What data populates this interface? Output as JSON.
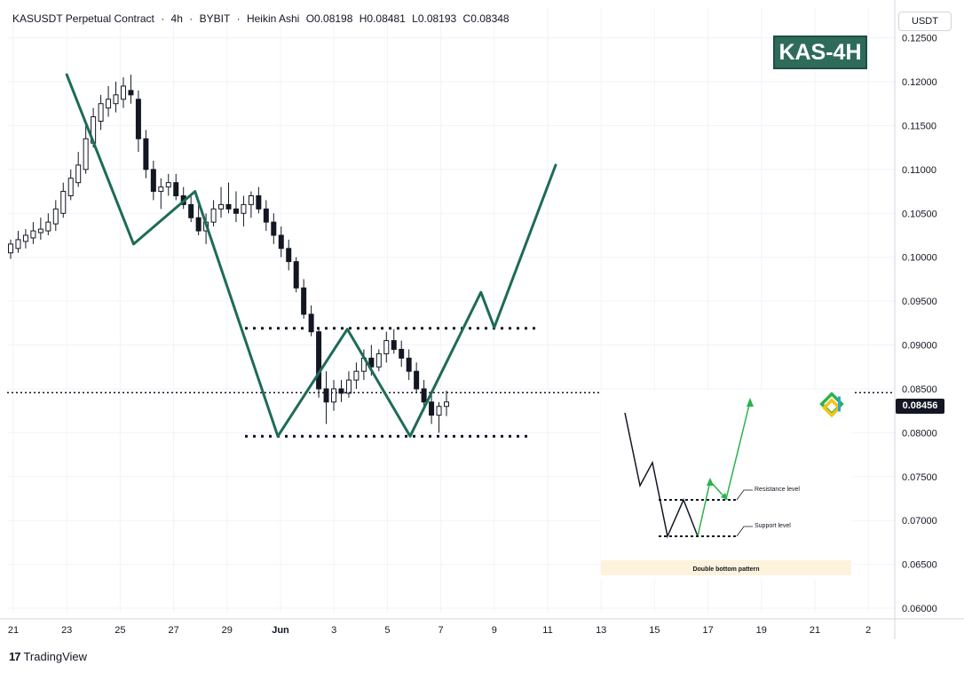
{
  "header": {
    "symbol": "KASUSDT Perpetual Contract",
    "interval": "4h",
    "exchange": "BYBIT",
    "chart_style": "Heikin Ashi",
    "open": "O0.08198",
    "high": "H0.08481",
    "low": "L0.08193",
    "close": "C0.08348"
  },
  "currency_label": "USDT",
  "badge": "KAS-4H",
  "current_price_label": "0.08456",
  "branding": "TradingView",
  "colors": {
    "candle": "#131722",
    "projection_line": "#1e6b57",
    "badge_bg": "#2e6b5a",
    "inset_arrow": "#2bb24c",
    "grid": "#f0f3fa"
  },
  "chart_data": {
    "type": "line",
    "title": "",
    "y_ticks": [
      "0.12500",
      "0.12000",
      "0.11500",
      "0.11000",
      "0.10500",
      "0.10000",
      "0.09500",
      "0.09000",
      "0.08500",
      "0.08000",
      "0.07500",
      "0.07000",
      "0.06500",
      "0.06000"
    ],
    "x_ticks": [
      "21",
      "23",
      "25",
      "27",
      "29",
      "Jun",
      "3",
      "5",
      "7",
      "9",
      "11",
      "13",
      "15",
      "17",
      "19",
      "21",
      "2"
    ],
    "ylim": [
      0.0595,
      0.1285
    ],
    "grid": true,
    "current_price": 0.08456,
    "support_level": 0.0796,
    "resistance_level": 0.0919,
    "projection_path": [
      {
        "x": 23.0,
        "y": 0.1208
      },
      {
        "x": 25.5,
        "y": 0.1015
      },
      {
        "x": 27.8,
        "y": 0.1075
      },
      {
        "x": 30.9,
        "y": 0.0796
      },
      {
        "x": 33.5,
        "y": 0.0918
      },
      {
        "x": 35.85,
        "y": 0.0796
      },
      {
        "x": 38.5,
        "y": 0.096
      },
      {
        "x": 39.0,
        "y": 0.092
      },
      {
        "x": 41.3,
        "y": 0.1105
      }
    ],
    "candles_approx": [
      [
        0.1005,
        0.102,
        0.0998,
        0.1015
      ],
      [
        0.101,
        0.103,
        0.1005,
        0.102
      ],
      [
        0.1018,
        0.1032,
        0.101,
        0.1025
      ],
      [
        0.1022,
        0.104,
        0.1015,
        0.103
      ],
      [
        0.1028,
        0.1045,
        0.102,
        0.1032
      ],
      [
        0.103,
        0.105,
        0.1025,
        0.104
      ],
      [
        0.1038,
        0.1065,
        0.103,
        0.1055
      ],
      [
        0.105,
        0.1085,
        0.1045,
        0.1075
      ],
      [
        0.107,
        0.11,
        0.1065,
        0.109
      ],
      [
        0.1085,
        0.112,
        0.108,
        0.1105
      ],
      [
        0.11,
        0.115,
        0.1095,
        0.1135
      ],
      [
        0.113,
        0.117,
        0.1125,
        0.116
      ],
      [
        0.1155,
        0.1185,
        0.1145,
        0.1175
      ],
      [
        0.117,
        0.1195,
        0.116,
        0.118
      ],
      [
        0.1175,
        0.12,
        0.1165,
        0.1185
      ],
      [
        0.118,
        0.1205,
        0.117,
        0.1195
      ],
      [
        0.119,
        0.1208,
        0.1175,
        0.1185
      ],
      [
        0.118,
        0.119,
        0.112,
        0.1135
      ],
      [
        0.1135,
        0.1145,
        0.109,
        0.11
      ],
      [
        0.11,
        0.111,
        0.1065,
        0.1075
      ],
      [
        0.1075,
        0.109,
        0.1055,
        0.108
      ],
      [
        0.108,
        0.1095,
        0.107,
        0.1085
      ],
      [
        0.1085,
        0.1095,
        0.1065,
        0.107
      ],
      [
        0.107,
        0.108,
        0.1055,
        0.106
      ],
      [
        0.106,
        0.107,
        0.104,
        0.1045
      ],
      [
        0.1045,
        0.106,
        0.1025,
        0.103
      ],
      [
        0.103,
        0.105,
        0.1015,
        0.104
      ],
      [
        0.104,
        0.1065,
        0.1035,
        0.1055
      ],
      [
        0.1055,
        0.108,
        0.1045,
        0.106
      ],
      [
        0.106,
        0.1085,
        0.105,
        0.1055
      ],
      [
        0.1055,
        0.1075,
        0.104,
        0.105
      ],
      [
        0.105,
        0.107,
        0.1035,
        0.106
      ],
      [
        0.106,
        0.1075,
        0.1045,
        0.107
      ],
      [
        0.107,
        0.108,
        0.105,
        0.1055
      ],
      [
        0.1055,
        0.1065,
        0.103,
        0.104
      ],
      [
        0.104,
        0.105,
        0.1015,
        0.1025
      ],
      [
        0.1025,
        0.1035,
        0.1,
        0.101
      ],
      [
        0.101,
        0.102,
        0.0985,
        0.0995
      ],
      [
        0.0995,
        0.1,
        0.096,
        0.0965
      ],
      [
        0.0965,
        0.0975,
        0.093,
        0.0935
      ],
      [
        0.0935,
        0.0945,
        0.091,
        0.0915
      ],
      [
        0.0915,
        0.092,
        0.084,
        0.085
      ],
      [
        0.085,
        0.087,
        0.081,
        0.0835
      ],
      [
        0.0835,
        0.086,
        0.0825,
        0.085
      ],
      [
        0.085,
        0.086,
        0.0835,
        0.0845
      ],
      [
        0.0845,
        0.087,
        0.084,
        0.086
      ],
      [
        0.086,
        0.088,
        0.085,
        0.087
      ],
      [
        0.087,
        0.0895,
        0.086,
        0.0885
      ],
      [
        0.0885,
        0.09,
        0.0865,
        0.0875
      ],
      [
        0.0875,
        0.0895,
        0.087,
        0.089
      ],
      [
        0.089,
        0.0915,
        0.088,
        0.0905
      ],
      [
        0.0905,
        0.0918,
        0.089,
        0.0895
      ],
      [
        0.0895,
        0.0905,
        0.0875,
        0.0885
      ],
      [
        0.0885,
        0.0895,
        0.086,
        0.087
      ],
      [
        0.087,
        0.088,
        0.0845,
        0.085
      ],
      [
        0.085,
        0.086,
        0.0825,
        0.0835
      ],
      [
        0.0835,
        0.0845,
        0.081,
        0.082
      ],
      [
        0.082,
        0.0835,
        0.08,
        0.083
      ],
      [
        0.083,
        0.0848,
        0.0819,
        0.0835
      ]
    ]
  },
  "inset": {
    "resistance_label": "Resistance level",
    "support_label": "Support level",
    "caption": "Double bottom pattern"
  }
}
